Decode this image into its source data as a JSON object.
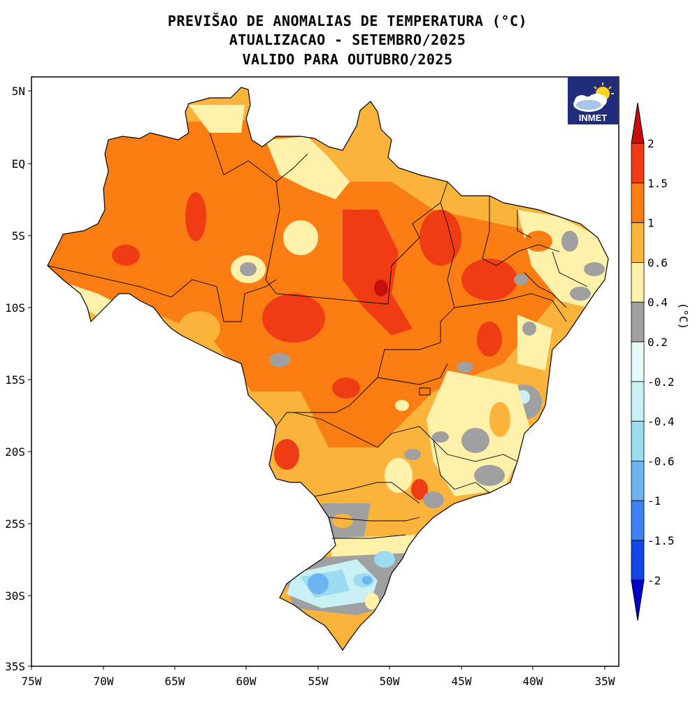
{
  "title": {
    "line1": "PREVIŠAO DE ANOMALIAS DE TEMPERATURA (°C)",
    "line2": "ATUALIZACAO - SETEMBRO/2025",
    "line3": "VALIDO PARA OUTUBRO/2025"
  },
  "logo": {
    "text": "INMET",
    "icon": "cloud-sun-icon"
  },
  "axes": {
    "lat_labels": [
      "5N",
      "EQ",
      "5S",
      "10S",
      "15S",
      "20S",
      "25S",
      "30S",
      "35S"
    ],
    "lon_labels": [
      "75W",
      "70W",
      "65W",
      "60W",
      "55W",
      "50W",
      "45W",
      "40W",
      "35W"
    ]
  },
  "colorbar": {
    "unit": "(°C)",
    "levels": [
      "2",
      "1.5",
      "1",
      "0.6",
      "0.4",
      "0.2",
      "-0.2",
      "-0.4",
      "-0.6",
      "-1",
      "-1.5",
      "-2"
    ],
    "colors": [
      "#c80f0f",
      "#f03c14",
      "#fa7d14",
      "#fab43c",
      "#fff0aa",
      "#a0a0a0",
      "#e6fafa",
      "#c8f0f5",
      "#9bdcf0",
      "#6eb4f0",
      "#3c82f0",
      "#1446e6",
      "#0000c8"
    ]
  },
  "palette": {
    "dark_red": "#c80f0f",
    "red": "#f03c14",
    "orange": "#fa7d14",
    "light_orange": "#fab43c",
    "yellow": "#fff0aa",
    "gray": "#a0a0a0",
    "pale_blue": "#c8f0f5",
    "light_blue": "#9bdcf0",
    "blue": "#6eb4f0"
  }
}
